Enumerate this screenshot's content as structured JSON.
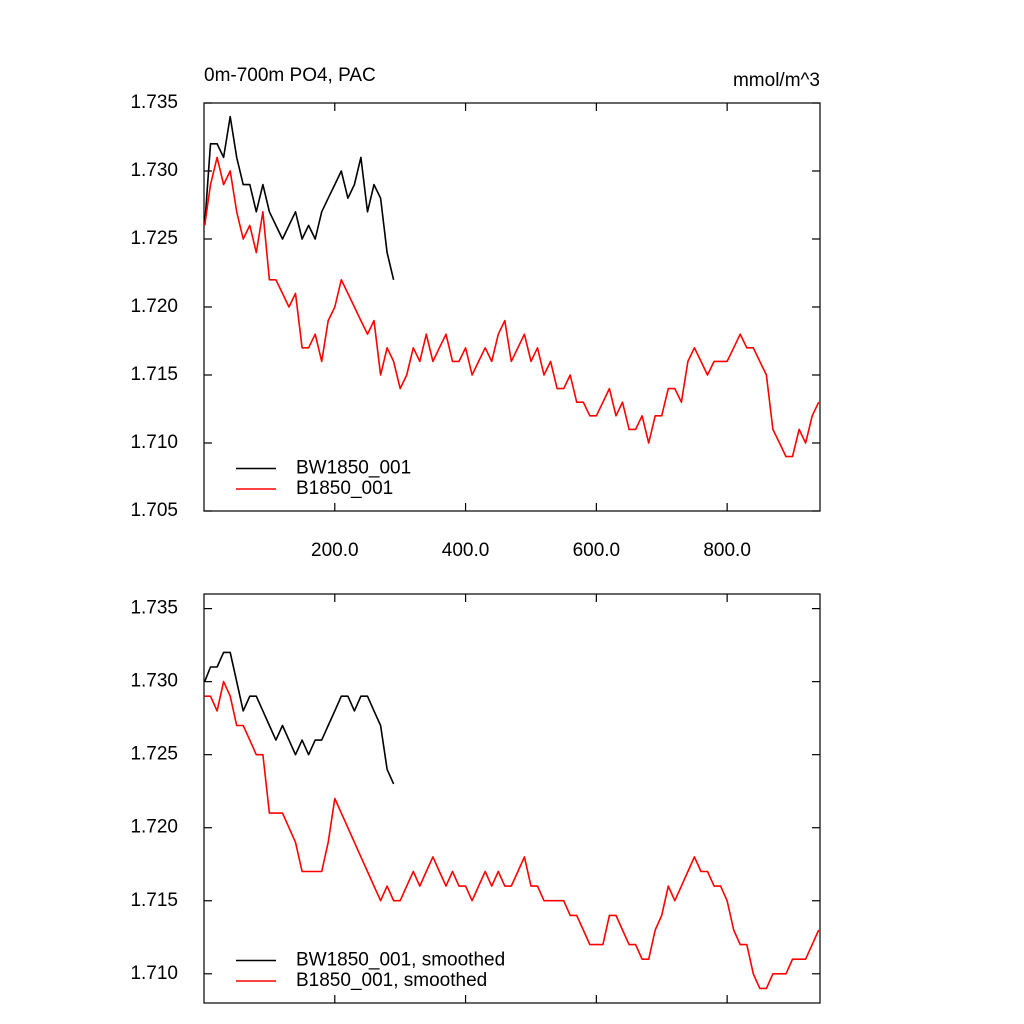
{
  "chart_data": [
    {
      "type": "line",
      "title": "0m-700m PO4, PAC",
      "units": "mmol/m^3",
      "xlim": [
        0,
        942
      ],
      "ylim": [
        1.705,
        1.735
      ],
      "xticks": [
        {
          "value": 200,
          "label": "200.0"
        },
        {
          "value": 400,
          "label": "400.0"
        },
        {
          "value": 600,
          "label": "600.0"
        },
        {
          "value": 800,
          "label": "800.0"
        }
      ],
      "yticks": [
        1.705,
        {
          "value": 1.71,
          "label": "1.710"
        },
        1.715,
        {
          "value": 1.72,
          "label": "1.720"
        },
        1.725,
        {
          "value": 1.73,
          "label": "1.730"
        },
        1.735
      ],
      "legend": "lower left",
      "series": [
        {
          "name": "BW1850_001",
          "color": "#000000",
          "x": [
            1,
            10,
            20,
            30,
            40,
            50,
            60,
            70,
            80,
            90,
            100,
            110,
            120,
            130,
            140,
            150,
            160,
            170,
            180,
            190,
            200,
            210,
            220,
            230,
            240,
            250,
            260,
            270,
            280,
            290
          ],
          "values": [
            1.726,
            1.732,
            1.732,
            1.731,
            1.734,
            1.731,
            1.729,
            1.729,
            1.727,
            1.729,
            1.727,
            1.726,
            1.725,
            1.726,
            1.727,
            1.725,
            1.726,
            1.725,
            1.727,
            1.728,
            1.729,
            1.73,
            1.728,
            1.729,
            1.731,
            1.727,
            1.729,
            1.728,
            1.724,
            1.722
          ]
        },
        {
          "name": "B1850_001",
          "color": "#ff0000",
          "x": [
            1,
            10,
            20,
            30,
            40,
            50,
            60,
            70,
            80,
            90,
            100,
            110,
            120,
            130,
            140,
            150,
            160,
            170,
            180,
            190,
            200,
            210,
            220,
            230,
            240,
            250,
            260,
            270,
            280,
            290,
            300,
            310,
            320,
            330,
            340,
            350,
            360,
            370,
            380,
            390,
            400,
            410,
            420,
            430,
            440,
            450,
            460,
            470,
            480,
            490,
            500,
            510,
            520,
            530,
            540,
            550,
            560,
            570,
            580,
            590,
            600,
            610,
            620,
            630,
            640,
            650,
            660,
            670,
            680,
            690,
            700,
            710,
            720,
            730,
            740,
            750,
            760,
            770,
            780,
            790,
            800,
            810,
            820,
            830,
            840,
            850,
            860,
            870,
            880,
            890,
            900,
            910,
            920,
            930,
            940
          ],
          "values": [
            1.726,
            1.729,
            1.731,
            1.729,
            1.73,
            1.727,
            1.725,
            1.726,
            1.724,
            1.727,
            1.722,
            1.722,
            1.721,
            1.72,
            1.721,
            1.717,
            1.717,
            1.718,
            1.716,
            1.719,
            1.72,
            1.722,
            1.721,
            1.72,
            1.719,
            1.718,
            1.719,
            1.715,
            1.717,
            1.716,
            1.714,
            1.715,
            1.717,
            1.716,
            1.718,
            1.716,
            1.717,
            1.718,
            1.716,
            1.716,
            1.717,
            1.715,
            1.716,
            1.717,
            1.716,
            1.718,
            1.719,
            1.716,
            1.717,
            1.718,
            1.716,
            1.717,
            1.715,
            1.716,
            1.714,
            1.714,
            1.715,
            1.713,
            1.713,
            1.712,
            1.712,
            1.713,
            1.714,
            1.712,
            1.713,
            1.711,
            1.711,
            1.712,
            1.71,
            1.712,
            1.712,
            1.714,
            1.714,
            1.713,
            1.716,
            1.717,
            1.716,
            1.715,
            1.716,
            1.716,
            1.716,
            1.717,
            1.718,
            1.717,
            1.717,
            1.716,
            1.715,
            1.711,
            1.71,
            1.709,
            1.709,
            1.711,
            1.71,
            1.712,
            1.713
          ]
        }
      ]
    },
    {
      "type": "line",
      "xlim": [
        0,
        942
      ],
      "ylim": [
        1.708,
        1.736
      ],
      "yticks": [
        {
          "value": 1.71,
          "label": "1.710"
        },
        1.715,
        {
          "value": 1.72,
          "label": "1.720"
        },
        1.725,
        {
          "value": 1.73,
          "label": "1.730"
        },
        1.735
      ],
      "legend": "lower left",
      "series": [
        {
          "name": "BW1850_001, smoothed",
          "color": "#000000",
          "x": [
            1,
            10,
            20,
            30,
            40,
            50,
            60,
            70,
            80,
            90,
            100,
            110,
            120,
            130,
            140,
            150,
            160,
            170,
            180,
            190,
            200,
            210,
            220,
            230,
            240,
            250,
            260,
            270,
            280,
            290
          ],
          "values": [
            1.73,
            1.731,
            1.731,
            1.732,
            1.732,
            1.73,
            1.728,
            1.729,
            1.729,
            1.728,
            1.727,
            1.726,
            1.727,
            1.726,
            1.725,
            1.726,
            1.725,
            1.726,
            1.726,
            1.727,
            1.728,
            1.729,
            1.729,
            1.728,
            1.729,
            1.729,
            1.728,
            1.727,
            1.724,
            1.723
          ]
        },
        {
          "name": "B1850_001, smoothed",
          "color": "#ff0000",
          "x": [
            1,
            10,
            20,
            30,
            40,
            50,
            60,
            70,
            80,
            90,
            100,
            110,
            120,
            130,
            140,
            150,
            160,
            170,
            180,
            190,
            200,
            210,
            220,
            230,
            240,
            250,
            260,
            270,
            280,
            290,
            300,
            310,
            320,
            330,
            340,
            350,
            360,
            370,
            380,
            390,
            400,
            410,
            420,
            430,
            440,
            450,
            460,
            470,
            480,
            490,
            500,
            510,
            520,
            530,
            540,
            550,
            560,
            570,
            580,
            590,
            600,
            610,
            620,
            630,
            640,
            650,
            660,
            670,
            680,
            690,
            700,
            710,
            720,
            730,
            740,
            750,
            760,
            770,
            780,
            790,
            800,
            810,
            820,
            830,
            840,
            850,
            860,
            870,
            880,
            890,
            900,
            910,
            920,
            930,
            940
          ],
          "values": [
            1.729,
            1.729,
            1.728,
            1.73,
            1.729,
            1.727,
            1.727,
            1.726,
            1.725,
            1.725,
            1.721,
            1.721,
            1.721,
            1.72,
            1.719,
            1.717,
            1.717,
            1.717,
            1.717,
            1.719,
            1.722,
            1.721,
            1.72,
            1.719,
            1.718,
            1.717,
            1.716,
            1.715,
            1.716,
            1.715,
            1.715,
            1.716,
            1.717,
            1.716,
            1.717,
            1.718,
            1.717,
            1.716,
            1.717,
            1.716,
            1.716,
            1.715,
            1.716,
            1.717,
            1.716,
            1.717,
            1.716,
            1.716,
            1.717,
            1.718,
            1.716,
            1.716,
            1.715,
            1.715,
            1.715,
            1.715,
            1.714,
            1.714,
            1.713,
            1.712,
            1.712,
            1.712,
            1.714,
            1.714,
            1.713,
            1.712,
            1.712,
            1.711,
            1.711,
            1.713,
            1.714,
            1.716,
            1.715,
            1.716,
            1.717,
            1.718,
            1.717,
            1.717,
            1.716,
            1.716,
            1.715,
            1.713,
            1.712,
            1.712,
            1.71,
            1.709,
            1.709,
            1.71,
            1.71,
            1.71,
            1.711,
            1.711,
            1.711,
            1.712,
            1.713
          ]
        }
      ]
    }
  ]
}
